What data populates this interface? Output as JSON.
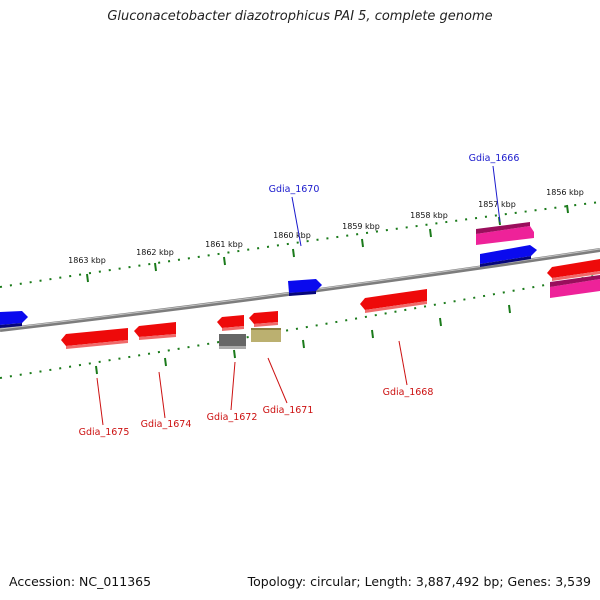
{
  "title": "Gluconacetobacter diazotrophicus PAI 5, complete genome",
  "footer": {
    "accession": "Accession: NC_011365",
    "summary": "Topology: circular; Length: 3,887,492 bp; Genes: 3,539"
  },
  "kbp_labels": [
    "1863 kbp",
    "1862 kbp",
    "1861 kbp",
    "1860 kbp",
    "1859 kbp",
    "1858 kbp",
    "1857 kbp",
    "1856 kbp"
  ],
  "gene_labels": {
    "gdia_1670": "Gdia_1670",
    "gdia_1666": "Gdia_1666",
    "gdia_1675": "Gdia_1675",
    "gdia_1674": "Gdia_1674",
    "gdia_1672": "Gdia_1672",
    "gdia_1671": "Gdia_1671",
    "gdia_1668": "Gdia_1668"
  },
  "colors": {
    "forward_cds": "#0a0aee",
    "reverse_cds": "#ee0a0a",
    "pink_cds": "#ee2299",
    "gray_feature": "#666666",
    "olive_feature": "#bbb070",
    "tick": "#1a7a1a",
    "backbone": "#7d7d7d"
  }
}
